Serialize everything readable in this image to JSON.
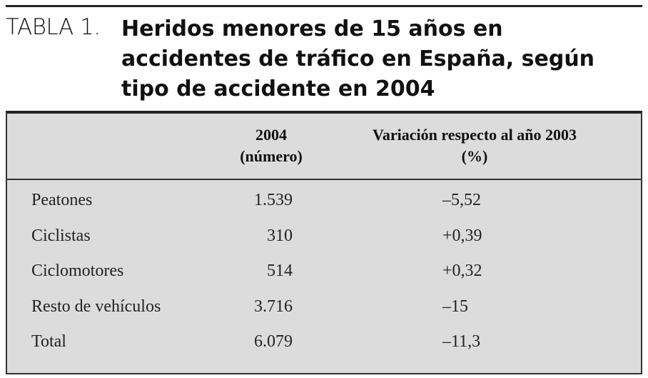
{
  "header": {
    "label": "TABLA 1.",
    "title": "Heridos menores de 15 años en accidentes de tráfico en España, según tipo de accidente en 2004"
  },
  "table": {
    "columns": [
      [],
      [
        "2004",
        "(número)"
      ],
      [
        "Variación respecto al año 2003",
        "(%)"
      ]
    ],
    "rows": [
      [
        "Peatones",
        "1.539",
        "–5,52"
      ],
      [
        "Ciclistas",
        "310",
        "+0,39"
      ],
      [
        "Ciclomotores",
        "514",
        "+0,32"
      ],
      [
        "Resto de vehículos",
        "3.716",
        "–15"
      ],
      [
        "Total",
        "6.079",
        "–11,3"
      ]
    ]
  }
}
